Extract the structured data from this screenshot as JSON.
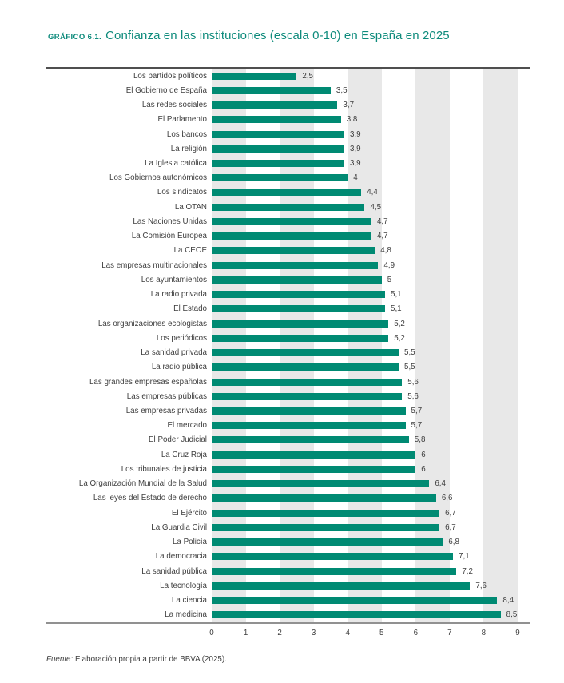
{
  "header": {
    "kicker": "GRÁFICO 6.1.",
    "title": "Confianza en las instituciones (escala 0-10) en España en 2025"
  },
  "chart_data": {
    "type": "bar",
    "orientation": "horizontal",
    "title": "Confianza en las instituciones (escala 0-10) en España en 2025",
    "xlabel": "",
    "ylabel": "",
    "xlim": [
      0,
      9
    ],
    "x_ticks": [
      "0",
      "1",
      "2",
      "3",
      "4",
      "5",
      "6",
      "7",
      "8",
      "9"
    ],
    "grid": "alternating vertical gray bands on intervals 0-1, 2-3, 4-5, 6-7, 8-9",
    "legend": "none",
    "bar_color": "#008a73",
    "stripe_color": "#e8e8e8",
    "accent_color": "#0e8b7c",
    "categories": [
      "Los partidos políticos",
      "El Gobierno de España",
      "Las redes sociales",
      "El Parlamento",
      "Los bancos",
      "La religión",
      "La Iglesia católica",
      "Los Gobiernos autonómicos",
      "Los sindicatos",
      "La OTAN",
      "Las Naciones Unidas",
      "La Comisión Europea",
      "La CEOE",
      "Las empresas multinacionales",
      "Los ayuntamientos",
      "La radio privada",
      "El Estado",
      "Las organizaciones ecologistas",
      "Los periódicos",
      "La sanidad privada",
      "La radio pública",
      "Las grandes empresas españolas",
      "Las empresas públicas",
      "Las empresas privadas",
      "El mercado",
      "El Poder Judicial",
      "La Cruz Roja",
      "Los tribunales de justicia",
      "La Organización Mundial de la Salud",
      "Las leyes del Estado de derecho",
      "El Ejército",
      "La Guardia Civil",
      "La Policía",
      "La democracia",
      "La sanidad pública",
      "La tecnología",
      "La ciencia",
      "La medicina"
    ],
    "values": [
      2.5,
      3.5,
      3.7,
      3.8,
      3.9,
      3.9,
      3.9,
      4,
      4.4,
      4.5,
      4.7,
      4.7,
      4.8,
      4.9,
      5,
      5.1,
      5.1,
      5.2,
      5.2,
      5.5,
      5.5,
      5.6,
      5.6,
      5.7,
      5.7,
      5.8,
      6,
      6,
      6.4,
      6.6,
      6.7,
      6.7,
      6.8,
      7.1,
      7.2,
      7.6,
      8.4,
      8.5
    ],
    "value_labels": [
      "2,5",
      "3,5",
      "3,7",
      "3,8",
      "3,9",
      "3,9",
      "3,9",
      "4",
      "4,4",
      "4,5",
      "4,7",
      "4,7",
      "4,8",
      "4,9",
      "5",
      "5,1",
      "5,1",
      "5,2",
      "5,2",
      "5,5",
      "5,5",
      "5,6",
      "5,6",
      "5,7",
      "5,7",
      "5,8",
      "6",
      "6",
      "6,4",
      "6,6",
      "6,7",
      "6,7",
      "6,8",
      "7,1",
      "7,2",
      "7,6",
      "8,4",
      "8,5"
    ]
  },
  "footer": {
    "source_prefix": "Fuente:",
    "source_text": " Elaboración propia a partir de BBVA (2025)."
  }
}
